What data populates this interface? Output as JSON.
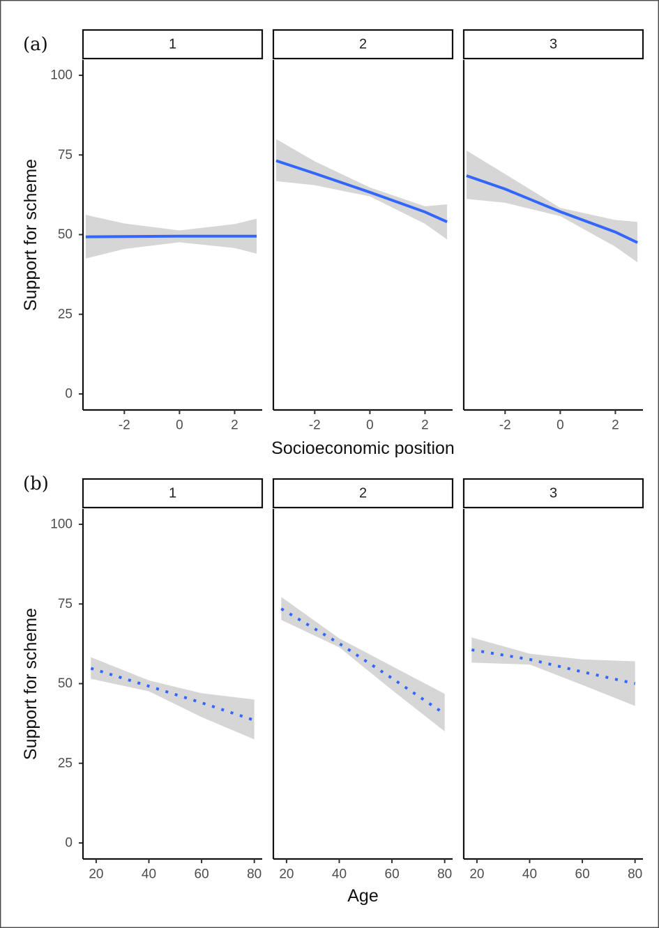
{
  "chart_data": [
    {
      "type": "line",
      "panel_label": "(a)",
      "xlabel": "Socioeconomic position",
      "ylabel": "Support for scheme",
      "xlim": [
        -3.5,
        3.0
      ],
      "ylim": [
        0,
        100
      ],
      "x_ticks": [
        -2,
        0,
        2
      ],
      "y_ticks": [
        0,
        25,
        50,
        75,
        100
      ],
      "line_style": "solid",
      "line_color": "#3366ff",
      "ribbon_color": "#d6d6d6",
      "grid": false,
      "facets": [
        {
          "label": "1",
          "x": [
            -3.4,
            -2,
            0,
            2,
            2.8
          ],
          "y": [
            49.3,
            49.4,
            49.5,
            49.5,
            49.5
          ],
          "ci_lower": [
            42.5,
            45.5,
            47.6,
            45.8,
            44
          ],
          "ci_upper": [
            56.2,
            53.5,
            51.3,
            53.3,
            55
          ]
        },
        {
          "label": "2",
          "x": [
            -3.4,
            -2,
            0,
            2,
            2.8
          ],
          "y": [
            73.2,
            69.2,
            63.3,
            57.1,
            54
          ],
          "ci_lower": [
            66.8,
            65.5,
            62,
            53.4,
            48.5
          ],
          "ci_upper": [
            80,
            73,
            64.8,
            58.9,
            59.5
          ]
        },
        {
          "label": "3",
          "x": [
            -3.4,
            -2,
            0,
            2,
            2.8
          ],
          "y": [
            68.5,
            64.3,
            57.2,
            50.8,
            47.5
          ],
          "ci_lower": [
            61.2,
            60,
            55.8,
            46.2,
            41.3
          ],
          "ci_upper": [
            76.4,
            69,
            58.4,
            54.6,
            54
          ]
        }
      ]
    },
    {
      "type": "line",
      "panel_label": "(b)",
      "xlabel": "Age",
      "ylabel": "Support for scheme",
      "xlim": [
        15,
        83
      ],
      "ylim": [
        0,
        100
      ],
      "x_ticks": [
        20,
        40,
        60,
        80
      ],
      "y_ticks": [
        0,
        25,
        50,
        75,
        100
      ],
      "line_style": "dotted",
      "line_color": "#3366ff",
      "ribbon_color": "#d6d6d6",
      "grid": false,
      "facets": [
        {
          "label": "1",
          "x": [
            18,
            40,
            60,
            80
          ],
          "y": [
            54.8,
            49.2,
            44,
            38.5
          ],
          "ci_lower": [
            51.5,
            47.6,
            39.5,
            32.5
          ],
          "ci_upper": [
            58.3,
            51,
            47,
            45
          ]
        },
        {
          "label": "2",
          "x": [
            18,
            40,
            60,
            80
          ],
          "y": [
            73.5,
            62.6,
            51.7,
            40.5
          ],
          "ci_lower": [
            70,
            61.4,
            48,
            35
          ],
          "ci_upper": [
            77.2,
            64.2,
            55.5,
            46.8
          ]
        },
        {
          "label": "3",
          "x": [
            18,
            40,
            60,
            80
          ],
          "y": [
            60.6,
            57.6,
            53.7,
            50
          ],
          "ci_lower": [
            56.6,
            56,
            49.6,
            43
          ],
          "ci_upper": [
            64.5,
            59.4,
            57.6,
            57
          ]
        }
      ]
    }
  ]
}
